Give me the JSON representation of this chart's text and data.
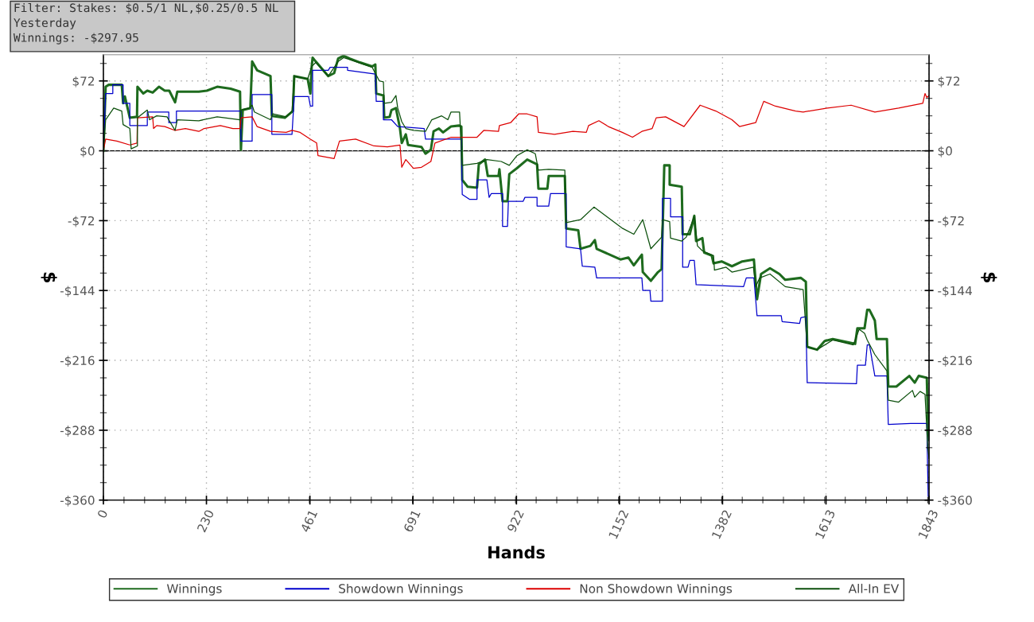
{
  "chart_data": {
    "type": "line",
    "xlabel": "Hands",
    "ylabel": "$",
    "y2label": "$",
    "annotations": [
      "Filter: Stakes: $0.5/1 NL,$0.25/0.5 NL",
      "Yesterday",
      "Winnings: -$297.95"
    ],
    "xlim": [
      0,
      1843
    ],
    "xticks": [
      0,
      230,
      461,
      691,
      922,
      1152,
      1382,
      1613,
      1843
    ],
    "ylim": [
      -360,
      99
    ],
    "yticks": [
      {
        "value": -360,
        "label": "-$360"
      },
      {
        "value": -288,
        "label": "-$288"
      },
      {
        "value": -216,
        "label": "-$216"
      },
      {
        "value": -144,
        "label": "-$144"
      },
      {
        "value": -72,
        "label": "-$72"
      },
      {
        "value": 0,
        "label": "$0"
      },
      {
        "value": 72,
        "label": "$72"
      }
    ],
    "y2lim": [
      -360,
      99
    ],
    "y2ticks": [
      {
        "value": -360,
        "label": "-$360"
      },
      {
        "value": -288,
        "label": "-$288"
      },
      {
        "value": -216,
        "label": "-$216"
      },
      {
        "value": -144,
        "label": "-$144"
      },
      {
        "value": -72,
        "label": "-$72"
      },
      {
        "value": 0,
        "label": "$0"
      },
      {
        "value": 72,
        "label": "$72"
      }
    ],
    "grid": true,
    "legend": "bottom",
    "line_style": "solid",
    "ref_lines": [
      {
        "axis": "y",
        "value": 0,
        "color": "#000000"
      }
    ],
    "series": [
      {
        "name": "Winnings",
        "color": "#1e6b1e",
        "x": [
          0,
          5,
          12,
          41,
          44,
          48,
          59,
          75,
          76,
          89,
          98,
          110,
          124,
          137,
          147,
          160,
          165,
          213,
          231,
          254,
          284,
          305,
          307,
          311,
          328,
          332,
          343,
          373,
          376,
          405,
          423,
          426,
          456,
          462,
          465,
          467,
          474,
          502,
          515,
          524,
          536,
          550,
          573,
          600,
          607,
          609,
          625,
          627,
          639,
          643,
          653,
          662,
          666,
          675,
          680,
          710,
          719,
          731,
          737,
          749,
          758,
          776,
          794,
          799,
          801,
          813,
          834,
          838,
          852,
          858,
          882,
          884,
          891,
          902,
          906,
          923,
          946,
          968,
          971,
          991,
          994,
          1030,
          1033,
          1060,
          1065,
          1087,
          1097,
          1101,
          1154,
          1172,
          1184,
          1202,
          1204,
          1222,
          1238,
          1246,
          1252,
          1264,
          1264,
          1291,
          1293,
          1309,
          1319,
          1323,
          1337,
          1341,
          1358,
          1362,
          1380,
          1403,
          1426,
          1452,
          1459,
          1468,
          1488,
          1509,
          1522,
          1557,
          1568,
          1571,
          1593,
          1610,
          1628,
          1678,
          1683,
          1699,
          1705,
          1710,
          1722,
          1726,
          1749,
          1752,
          1770,
          1799,
          1811,
          1820,
          1838,
          1841,
          1843
        ],
        "values": [
          0,
          66,
          68,
          68,
          49,
          56,
          34,
          35,
          66,
          59,
          62,
          60,
          66,
          62,
          62,
          50,
          61,
          61,
          62,
          66,
          64,
          61,
          1,
          42,
          44,
          92,
          83,
          77,
          36,
          34,
          41,
          77,
          74,
          59,
          87,
          96,
          92,
          77,
          80,
          95,
          98,
          95,
          91,
          87,
          89,
          59,
          57,
          34,
          35,
          42,
          44,
          23,
          8,
          17,
          6,
          4,
          -3,
          1,
          20,
          23,
          19,
          25,
          26,
          25,
          -30,
          -37,
          -38,
          -14,
          -9,
          -26,
          -26,
          -19,
          -52,
          -52,
          -24,
          -18,
          -9,
          -14,
          -39,
          -39,
          -26,
          -26,
          -80,
          -82,
          -101,
          -98,
          -92,
          -101,
          -112,
          -110,
          -118,
          -107,
          -125,
          -134,
          -125,
          -122,
          -15,
          -15,
          -35,
          -37,
          -86,
          -86,
          -67,
          -93,
          -90,
          -105,
          -108,
          -116,
          -114,
          -119,
          -114,
          -112,
          -153,
          -127,
          -121,
          -127,
          -133,
          -131,
          -135,
          -202,
          -205,
          -196,
          -194,
          -199,
          -183,
          -183,
          -164,
          -164,
          -175,
          -194,
          -194,
          -243,
          -243,
          -232,
          -239,
          -232,
          -234,
          -288,
          -298
        ]
      },
      {
        "name": "Showdown Winnings",
        "color": "#0000cc",
        "x": [
          0,
          5,
          21,
          21,
          44,
          44,
          59,
          59,
          98,
          98,
          146,
          146,
          163,
          163,
          307,
          307,
          332,
          332,
          376,
          376,
          421,
          426,
          458,
          462,
          467,
          467,
          502,
          506,
          545,
          545,
          607,
          609,
          625,
          625,
          643,
          657,
          716,
          719,
          799,
          801,
          817,
          834,
          834,
          856,
          861,
          866,
          891,
          891,
          902,
          904,
          937,
          941,
          968,
          968,
          994,
          998,
          1033,
          1033,
          1065,
          1069,
          1097,
          1101,
          1202,
          1204,
          1220,
          1222,
          1248,
          1248,
          1266,
          1266,
          1293,
          1293,
          1305,
          1309,
          1319,
          1323,
          1429,
          1435,
          1452,
          1456,
          1459,
          1513,
          1515,
          1554,
          1557,
          1568,
          1571,
          1681,
          1683,
          1701,
          1705,
          1710,
          1722,
          1749,
          1752,
          1802,
          1838,
          1841,
          1843
        ],
        "values": [
          0,
          59,
          59,
          68,
          68,
          49,
          49,
          26,
          26,
          40,
          40,
          29,
          29,
          41,
          41,
          10,
          10,
          58,
          58,
          17,
          17,
          56,
          56,
          46,
          46,
          83,
          83,
          86,
          86,
          83,
          79,
          51,
          51,
          32,
          32,
          25,
          23,
          12,
          12,
          -45,
          -50,
          -50,
          -30,
          -30,
          -48,
          -44,
          -44,
          -78,
          -78,
          -52,
          -52,
          -48,
          -48,
          -57,
          -57,
          -44,
          -44,
          -99,
          -101,
          -119,
          -120,
          -131,
          -131,
          -144,
          -144,
          -155,
          -155,
          -49,
          -49,
          -68,
          -68,
          -120,
          -120,
          -113,
          -113,
          -138,
          -140,
          -131,
          -131,
          -153,
          -170,
          -170,
          -176,
          -178,
          -172,
          -171,
          -239,
          -240,
          -221,
          -221,
          -200,
          -200,
          -232,
          -232,
          -282,
          -281,
          -281,
          -356,
          -356
        ]
      },
      {
        "name": "Non Showdown Winnings",
        "color": "#dd0000",
        "x": [
          0,
          5,
          30,
          59,
          75,
          76,
          110,
          112,
          119,
          137,
          160,
          183,
          213,
          225,
          261,
          289,
          305,
          307,
          332,
          343,
          373,
          408,
          421,
          439,
          462,
          476,
          479,
          515,
          527,
          563,
          604,
          634,
          662,
          666,
          675,
          692,
          710,
          731,
          740,
          776,
          834,
          849,
          882,
          884,
          909,
          927,
          946,
          968,
          971,
          1007,
          1048,
          1078,
          1083,
          1106,
          1127,
          1158,
          1181,
          1202,
          1225,
          1234,
          1255,
          1296,
          1332,
          1367,
          1403,
          1420,
          1456,
          1474,
          1500,
          1545,
          1562,
          1616,
          1669,
          1722,
          1775,
          1829,
          1834,
          1838,
          1843
        ],
        "values": [
          0,
          12,
          10,
          6,
          8,
          34,
          35,
          23,
          26,
          25,
          21,
          23,
          20,
          23,
          26,
          23,
          23,
          34,
          35,
          25,
          20,
          19,
          21,
          19,
          12,
          8,
          -5,
          -8,
          10,
          12,
          5,
          4,
          6,
          -17,
          -9,
          -18,
          -17,
          -11,
          8,
          14,
          14,
          21,
          20,
          26,
          29,
          38,
          38,
          35,
          19,
          17,
          20,
          19,
          26,
          31,
          25,
          19,
          14,
          20,
          23,
          34,
          35,
          25,
          47,
          41,
          32,
          25,
          29,
          51,
          46,
          41,
          40,
          44,
          47,
          40,
          44,
          49,
          59,
          55,
          57
        ]
      },
      {
        "name": "All-In EV",
        "color": "#0b4f0b",
        "x": [
          0,
          5,
          23,
          41,
          44,
          59,
          62,
          76,
          76,
          98,
          103,
          119,
          142,
          160,
          165,
          213,
          254,
          305,
          307,
          325,
          332,
          337,
          373,
          378,
          408,
          421,
          426,
          456,
          465,
          474,
          502,
          524,
          536,
          550,
          600,
          616,
          625,
          627,
          643,
          653,
          657,
          666,
          675,
          692,
          719,
          733,
          755,
          769,
          776,
          795,
          801,
          834,
          856,
          888,
          906,
          923,
          946,
          964,
          971,
          994,
          1030,
          1033,
          1065,
          1095,
          1124,
          1159,
          1184,
          1204,
          1222,
          1246,
          1248,
          1264,
          1266,
          1291,
          1301,
          1319,
          1326,
          1337,
          1362,
          1364,
          1390,
          1403,
          1451,
          1456,
          1465,
          1488,
          1522,
          1562,
          1571,
          1593,
          1628,
          1674,
          1687,
          1699,
          1705,
          1722,
          1749,
          1752,
          1775,
          1806,
          1811,
          1823,
          1834,
          1840,
          1843
        ],
        "values": [
          0,
          32,
          44,
          41,
          27,
          23,
          2,
          5,
          34,
          42,
          32,
          36,
          35,
          21,
          32,
          31,
          35,
          32,
          42,
          44,
          47,
          40,
          32,
          38,
          35,
          41,
          77,
          74,
          87,
          91,
          77,
          92,
          96,
          94,
          86,
          72,
          71,
          49,
          50,
          57,
          44,
          30,
          23,
          21,
          20,
          32,
          36,
          32,
          40,
          40,
          -15,
          -13,
          -9,
          -11,
          -15,
          -5,
          1,
          -3,
          -20,
          -19,
          -20,
          -74,
          -71,
          -58,
          -68,
          -80,
          -86,
          -71,
          -101,
          -89,
          -71,
          -73,
          -90,
          -93,
          -89,
          -68,
          -98,
          -103,
          -108,
          -123,
          -120,
          -125,
          -120,
          -140,
          -131,
          -127,
          -140,
          -143,
          -202,
          -205,
          -195,
          -200,
          -184,
          -188,
          -195,
          -210,
          -227,
          -257,
          -259,
          -247,
          -254,
          -248,
          -251,
          -305,
          -317
        ]
      }
    ]
  }
}
